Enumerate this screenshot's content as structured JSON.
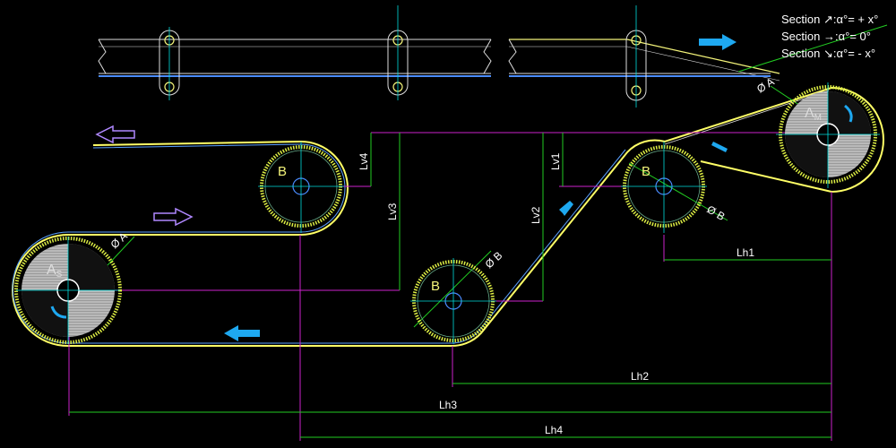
{
  "legend": {
    "title": "Section",
    "rows": [
      {
        "arrow": "↗",
        "text": ":α°= + x°"
      },
      {
        "arrow": "→",
        "text": ":α°=   0°"
      },
      {
        "arrow": "↘",
        "text": ":α°=  - x°"
      }
    ]
  },
  "pulley_labels": {
    "drive": "A",
    "drive_sub": "M",
    "tail": "A",
    "tail_sub": "S",
    "idler": "B"
  },
  "diameters": {
    "drive": "Ø A",
    "tail": "Ø A",
    "idler_low": "Ø B",
    "idler_high": "Ø B"
  },
  "dimensions": {
    "lh1": "Lh1",
    "lh2": "Lh2",
    "lh3": "Lh3",
    "lh4": "Lh4",
    "lv1": "Lv1",
    "lv2": "Lv2",
    "lv3": "Lv3",
    "lv4": "Lv4"
  },
  "colors": {
    "belt": "#ffff66",
    "belt_inner": "#5aa0ff",
    "pulley_ring": "#ddee44",
    "dimension_line": "#22cc22",
    "extension_line": "#cc22cc",
    "centerline": "#00dddd",
    "arrow_blue": "#1ea8f0",
    "arrow_purple": "#b088ff"
  }
}
